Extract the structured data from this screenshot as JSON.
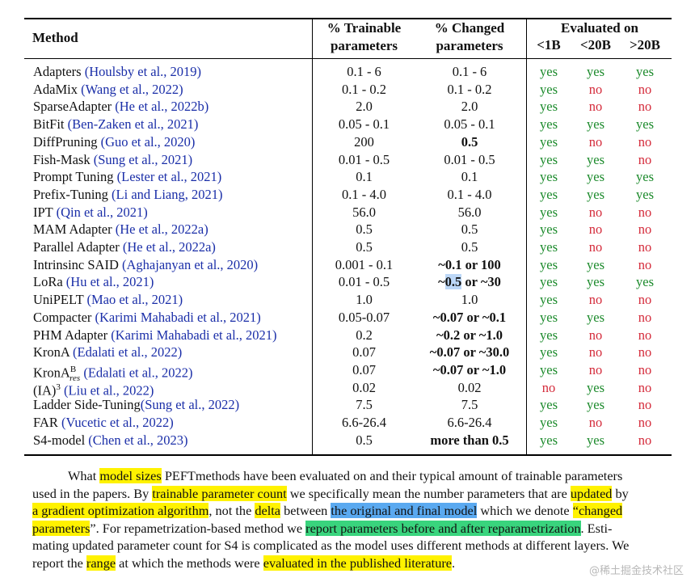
{
  "table": {
    "headers": {
      "method": "Method",
      "trainable_l1": "% Trainable",
      "trainable_l2": "parameters",
      "changed_l1": "% Changed",
      "changed_l2": "parameters",
      "evaluated": "Evaluated on",
      "lt1b": "<1B",
      "lt20b": "<20B",
      "gt20b": ">20B"
    },
    "rows": [
      {
        "name": "Adapters ",
        "cite": "(Houlsby et al., 2019)",
        "trainable": "0.1 - 6",
        "changed": "0.1 - 6",
        "changed_bold": false,
        "e1": "yes",
        "e2": "yes",
        "e3": "yes"
      },
      {
        "name": "AdaMix ",
        "cite": "(Wang et al., 2022)",
        "trainable": "0.1 - 0.2",
        "changed": "0.1 - 0.2",
        "changed_bold": false,
        "e1": "yes",
        "e2": "no",
        "e3": "no"
      },
      {
        "name": "SparseAdapter ",
        "cite": "(He et al., 2022b)",
        "trainable": "2.0",
        "changed": "2.0",
        "changed_bold": false,
        "e1": "yes",
        "e2": "no",
        "e3": "no"
      },
      {
        "name": "BitFit ",
        "cite": "(Ben-Zaken et al., 2021)",
        "trainable": "0.05 - 0.1",
        "changed": "0.05 - 0.1",
        "changed_bold": false,
        "e1": "yes",
        "e2": "yes",
        "e3": "yes"
      },
      {
        "name": "DiffPruning ",
        "cite": "(Guo et al., 2020)",
        "trainable": "200",
        "changed": "0.5",
        "changed_bold": true,
        "e1": "yes",
        "e2": "no",
        "e3": "no"
      },
      {
        "name": "Fish-Mask ",
        "cite": "(Sung et al., 2021)",
        "trainable": "0.01 - 0.5",
        "changed": "0.01 - 0.5",
        "changed_bold": false,
        "e1": "yes",
        "e2": "yes",
        "e3": "no"
      },
      {
        "name": "Prompt Tuning ",
        "cite": "(Lester et al., 2021)",
        "trainable": "0.1",
        "changed": "0.1",
        "changed_bold": false,
        "e1": "yes",
        "e2": "yes",
        "e3": "yes"
      },
      {
        "name": "Prefix-Tuning ",
        "cite": "(Li and Liang, 2021)",
        "trainable": "0.1 - 4.0",
        "changed": "0.1 - 4.0",
        "changed_bold": false,
        "e1": "yes",
        "e2": "yes",
        "e3": "yes"
      },
      {
        "name": "IPT ",
        "cite": "(Qin et al., 2021)",
        "trainable": "56.0",
        "changed": "56.0",
        "changed_bold": false,
        "e1": "yes",
        "e2": "no",
        "e3": "no"
      },
      {
        "name": "MAM Adapter ",
        "cite": "(He et al., 2022a)",
        "trainable": "0.5",
        "changed": "0.5",
        "changed_bold": false,
        "e1": "yes",
        "e2": "no",
        "e3": "no"
      },
      {
        "name": "Parallel Adapter ",
        "cite": "(He et al., 2022a)",
        "trainable": "0.5",
        "changed": "0.5",
        "changed_bold": false,
        "e1": "yes",
        "e2": "no",
        "e3": "no"
      },
      {
        "name": "Intrinsinc SAID ",
        "cite": "(Aghajanyan et al., 2020)",
        "trainable": "0.001 - 0.1",
        "changed": "~0.1 or 100",
        "changed_bold": true,
        "e1": "yes",
        "e2": "yes",
        "e3": "no"
      },
      {
        "name": "LoRa ",
        "cite": "(Hu et al., 2021)",
        "trainable": "0.01 - 0.5",
        "changed": "~0.5 or ~30",
        "changed_bold": true,
        "e1": "yes",
        "e2": "yes",
        "e3": "yes"
      },
      {
        "name": "UniPELT ",
        "cite": "(Mao et al., 2021)",
        "trainable": "1.0",
        "changed": "1.0",
        "changed_bold": false,
        "e1": "yes",
        "e2": "no",
        "e3": "no"
      },
      {
        "name": "Compacter ",
        "cite": "(Karimi Mahabadi et al., 2021)",
        "trainable": "0.05-0.07",
        "changed": "~0.07 or ~0.1",
        "changed_bold": true,
        "e1": "yes",
        "e2": "yes",
        "e3": "no"
      },
      {
        "name": "PHM Adapter ",
        "cite": "(Karimi Mahabadi et al., 2021)",
        "trainable": "0.2",
        "changed": "~0.2 or ~1.0",
        "changed_bold": true,
        "e1": "yes",
        "e2": "no",
        "e3": "no"
      },
      {
        "name": "KronA ",
        "cite": "(Edalati et al., 2022)",
        "trainable": "0.07",
        "changed": "~0.07 or ~30.0",
        "changed_bold": true,
        "e1": "yes",
        "e2": "no",
        "e3": "no"
      },
      {
        "name": "KronA",
        "name_sup": "B",
        "name_sub": "res",
        "cite": "(Edalati et al., 2022)",
        "trainable": "0.07",
        "changed": "~0.07 or ~1.0",
        "changed_bold": true,
        "e1": "yes",
        "e2": "no",
        "e3": "no"
      },
      {
        "name": "(IA)",
        "name_sup": "3",
        "cite": "(Liu et al., 2022)",
        "trainable": "0.02",
        "changed": "0.02",
        "changed_bold": false,
        "e1": "no",
        "e2": "yes",
        "e3": "no"
      },
      {
        "name": "Ladder Side-Tuning",
        "cite": "(Sung et al., 2022)",
        "trainable": "7.5",
        "changed": "7.5",
        "changed_bold": false,
        "e1": "yes",
        "e2": "yes",
        "e3": "no"
      },
      {
        "name": "FAR ",
        "cite": "(Vucetic et al., 2022)",
        "trainable": "6.6-26.4",
        "changed": "6.6-26.4",
        "changed_bold": false,
        "e1": "yes",
        "e2": "no",
        "e3": "no"
      },
      {
        "name": "S4-model ",
        "cite": "(Chen et al., 2023)",
        "trainable": "0.5",
        "changed": "more than 0.5",
        "changed_bold": true,
        "e1": "yes",
        "e2": "yes",
        "e3": "no"
      }
    ]
  },
  "caption": {
    "lines": [
      [
        {
          "t": "What "
        },
        {
          "t": "model sizes",
          "h": "y"
        },
        {
          "t": " PEFTmethods have been evaluated on and their typical amount of trainable parameters"
        }
      ],
      [
        {
          "t": "used in the papers. By "
        },
        {
          "t": "trainable parameter count",
          "h": "y"
        },
        {
          "t": " we specifically mean the number parameters that are "
        },
        {
          "t": "updated",
          "h": "y"
        },
        {
          "t": " by"
        }
      ],
      [
        {
          "t": "a gradient optimization algorithm",
          "h": "y"
        },
        {
          "t": ", not the "
        },
        {
          "t": "delta",
          "h": "y"
        },
        {
          "t": " between "
        },
        {
          "t": "the original and final model",
          "h": "b"
        },
        {
          "t": " which we denote "
        },
        {
          "t": "“changed",
          "h": "y"
        }
      ],
      [
        {
          "t": "parameters",
          "h": "y"
        },
        {
          "t": "”. For repametrization-based method we "
        },
        {
          "t": "report parameters before and after reparametrization",
          "h": "g"
        },
        {
          "t": ". Esti-"
        }
      ],
      [
        {
          "t": "mating updated parameter count for S4 is complicated as the model uses different methods at different layers. We"
        }
      ],
      [
        {
          "t": "report the "
        },
        {
          "t": "range",
          "h": "y"
        },
        {
          "t": " at which the methods were "
        },
        {
          "t": "evaluated in the published literature",
          "h": "y"
        },
        {
          "t": "."
        }
      ]
    ]
  },
  "watermark": "@稀土掘金技术社区",
  "colors": {
    "yes": "#1b8a2b",
    "no": "#d42a3a",
    "cite": "#1a2ea8",
    "highlight_yellow": "#fff200",
    "highlight_blue": "#5aa9f0",
    "highlight_green": "#39d47d"
  }
}
